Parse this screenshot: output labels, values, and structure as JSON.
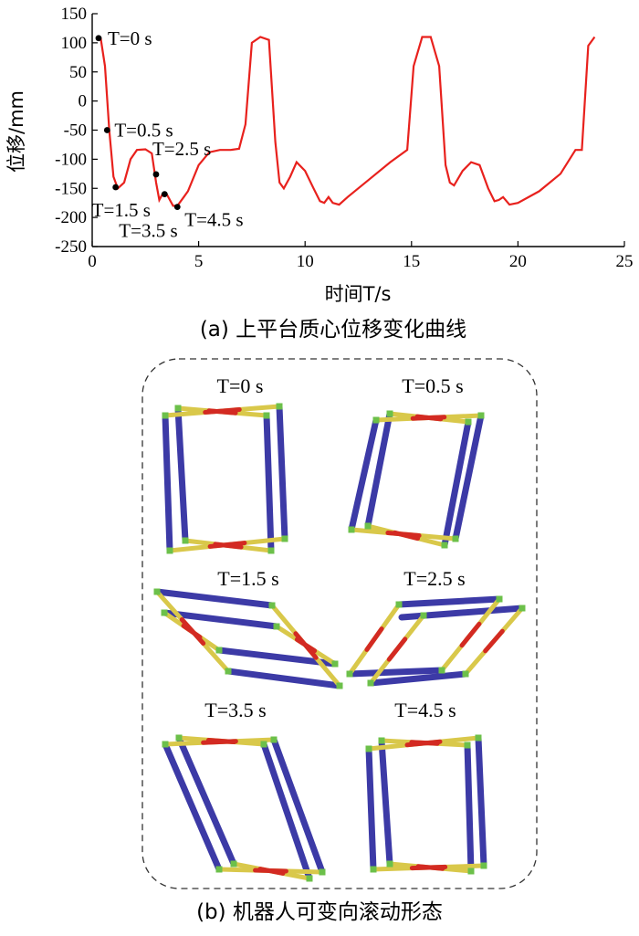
{
  "chart_data": {
    "type": "line",
    "xlabel": "时间T/s",
    "ylabel": "位移/mm",
    "xlim": [
      0,
      25
    ],
    "ylim": [
      -250,
      150
    ],
    "xticks": [
      0,
      5,
      10,
      15,
      20,
      25
    ],
    "yticks": [
      150,
      100,
      50,
      0,
      -50,
      -100,
      -150,
      -200,
      -250
    ],
    "grid": false,
    "series": [
      {
        "color": "#e8211d",
        "x": [
          0.2,
          0.4,
          0.6,
          0.8,
          1.0,
          1.2,
          1.5,
          1.8,
          2.1,
          2.5,
          2.8,
          3.0,
          3.15,
          3.3,
          3.5,
          3.8,
          4.0,
          4.3,
          4.5,
          5.0,
          5.5,
          6.0,
          6.5,
          6.9,
          7.2,
          7.5,
          7.9,
          8.3,
          8.6,
          8.8,
          9.0,
          9.3,
          9.6,
          10.0,
          10.4,
          10.7,
          10.9,
          11.1,
          11.3,
          11.6,
          12.0,
          13.0,
          14.0,
          14.8,
          15.1,
          15.5,
          15.9,
          16.3,
          16.6,
          16.8,
          17.0,
          17.4,
          17.8,
          18.2,
          18.6,
          18.9,
          19.1,
          19.3,
          19.6,
          20.0,
          21.0,
          22.0,
          22.7,
          23.0,
          23.3,
          23.6
        ],
        "y": [
          110,
          108,
          60,
          -50,
          -130,
          -150,
          -140,
          -100,
          -84,
          -83,
          -90,
          -140,
          -170,
          -160,
          -160,
          -180,
          -180,
          -165,
          -155,
          -110,
          -88,
          -84,
          -84,
          -82,
          -40,
          100,
          110,
          105,
          -70,
          -140,
          -150,
          -130,
          -105,
          -120,
          -150,
          -172,
          -175,
          -165,
          -175,
          -178,
          -165,
          -135,
          -105,
          -84,
          60,
          110,
          110,
          60,
          -110,
          -140,
          -145,
          -120,
          -105,
          -110,
          -150,
          -172,
          -170,
          -165,
          -178,
          -175,
          -155,
          -125,
          -84,
          -84,
          95,
          110
        ]
      }
    ],
    "annotations": [
      {
        "label": "T=0 s",
        "x": 0.3,
        "y": 108
      },
      {
        "label": "T=0.5 s",
        "x": 0.7,
        "y": -50
      },
      {
        "label": "T=1.5 s",
        "x": 1.1,
        "y": -148
      },
      {
        "label": "T=2.5 s",
        "x": 3.0,
        "y": -126
      },
      {
        "label": "T=3.5 s",
        "x": 3.4,
        "y": -160
      },
      {
        "label": "T=4.5 s",
        "x": 4.0,
        "y": -182
      }
    ]
  },
  "captions": {
    "a": "(a)  上平台质心位移变化曲线",
    "b": "(b)  机器人可变向滚动形态"
  },
  "panels": [
    {
      "title": "T=0 s"
    },
    {
      "title": "T=0.5 s"
    },
    {
      "title": "T=1.5 s"
    },
    {
      "title": "T=2.5 s"
    },
    {
      "title": "T=3.5 s"
    },
    {
      "title": "T=4.5 s"
    }
  ],
  "colors": {
    "curve": "#e8211d",
    "rod_blue": "#3c3aa6",
    "rod_yellow": "#d9c84a",
    "rod_red": "#d32a22",
    "node_green": "#6cc04a",
    "frame": "#333333"
  }
}
